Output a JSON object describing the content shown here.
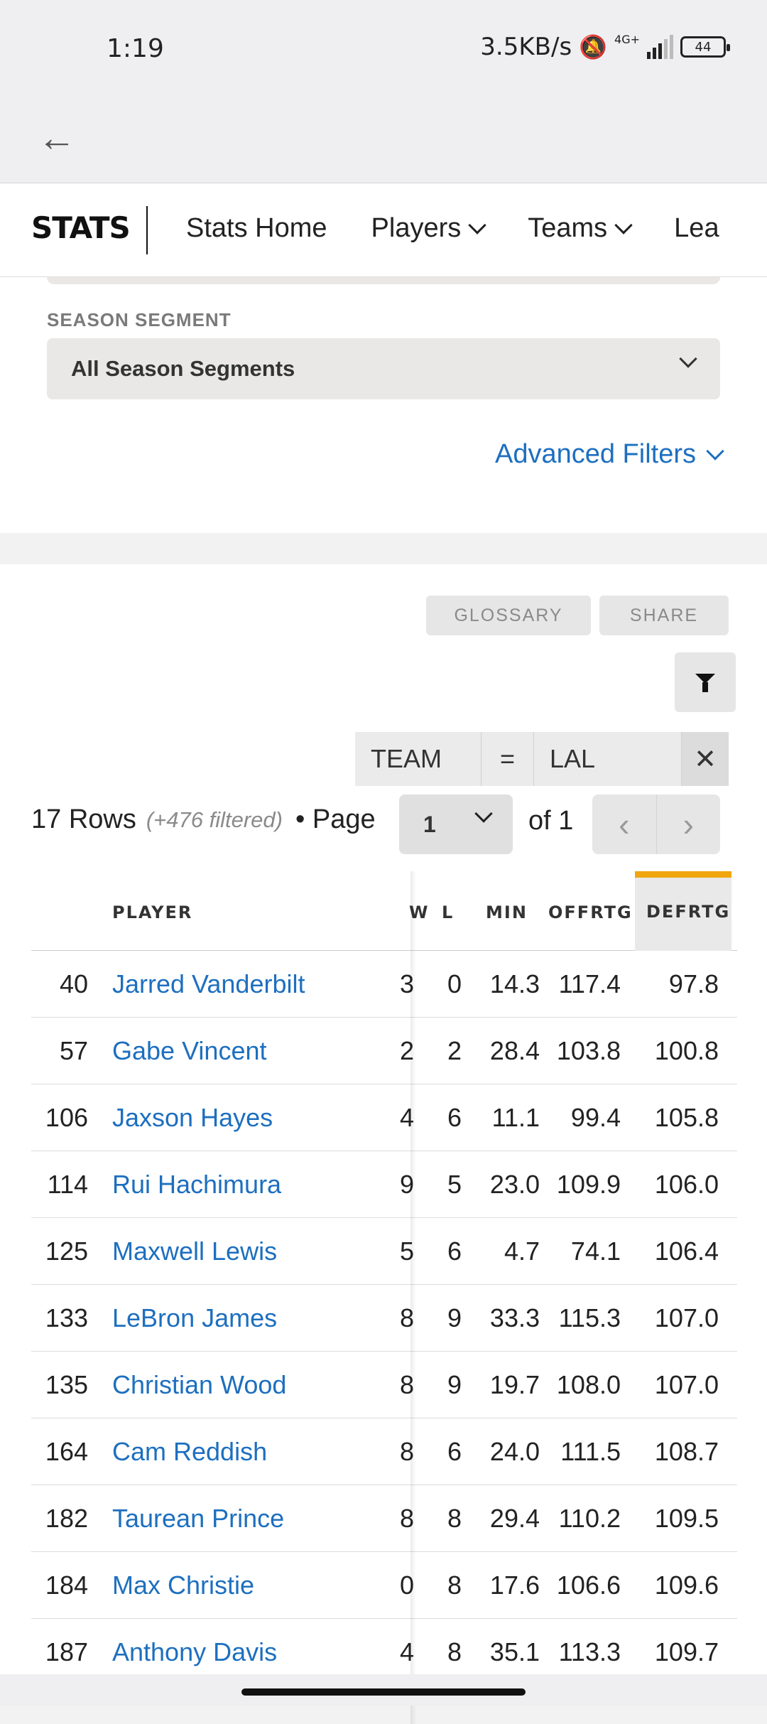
{
  "status_bar": {
    "time": "1:19",
    "network_speed": "3.5KB/s",
    "network_type": "4G+",
    "battery": "44"
  },
  "nav": {
    "brand": "STATS",
    "items": [
      {
        "label": "Stats Home"
      },
      {
        "label": "Players"
      },
      {
        "label": "Teams"
      },
      {
        "label": "Lea"
      }
    ]
  },
  "filters": {
    "season_segment_label": "SEASON SEGMENT",
    "season_segment_value": "All Season Segments",
    "advanced_filters": "Advanced Filters"
  },
  "toolbar": {
    "glossary": "GLOSSARY",
    "share": "SHARE"
  },
  "team_filter": {
    "field": "TEAM",
    "operator": "=",
    "value": "LAL",
    "close": "✕"
  },
  "rows_info": {
    "rows": "17 Rows",
    "filtered": "(+476 filtered)",
    "page_label": "• Page",
    "page": "1",
    "of": "of 1"
  },
  "table": {
    "columns": [
      "PLAYER",
      "W",
      "L",
      "MIN",
      "OFFRTG",
      "DEFRTG"
    ],
    "rows": [
      {
        "rank": "40",
        "player": "Jarred Vanderbilt",
        "w": "3",
        "l": "0",
        "min": "14.3",
        "offrtg": "117.4",
        "defrtg": "97.8"
      },
      {
        "rank": "57",
        "player": "Gabe Vincent",
        "w": "2",
        "l": "2",
        "min": "28.4",
        "offrtg": "103.8",
        "defrtg": "100.8"
      },
      {
        "rank": "106",
        "player": "Jaxson Hayes",
        "w": "4",
        "l": "6",
        "min": "11.1",
        "offrtg": "99.4",
        "defrtg": "105.8"
      },
      {
        "rank": "114",
        "player": "Rui Hachimura",
        "w": "9",
        "l": "5",
        "min": "23.0",
        "offrtg": "109.9",
        "defrtg": "106.0"
      },
      {
        "rank": "125",
        "player": "Maxwell Lewis",
        "w": "5",
        "l": "6",
        "min": "4.7",
        "offrtg": "74.1",
        "defrtg": "106.4"
      },
      {
        "rank": "133",
        "player": "LeBron James",
        "w": "8",
        "l": "9",
        "min": "33.3",
        "offrtg": "115.3",
        "defrtg": "107.0"
      },
      {
        "rank": "135",
        "player": "Christian Wood",
        "w": "8",
        "l": "9",
        "min": "19.7",
        "offrtg": "108.0",
        "defrtg": "107.0"
      },
      {
        "rank": "164",
        "player": "Cam Reddish",
        "w": "8",
        "l": "6",
        "min": "24.0",
        "offrtg": "111.5",
        "defrtg": "108.7"
      },
      {
        "rank": "182",
        "player": "Taurean Prince",
        "w": "8",
        "l": "8",
        "min": "29.4",
        "offrtg": "110.2",
        "defrtg": "109.5"
      },
      {
        "rank": "184",
        "player": "Max Christie",
        "w": "0",
        "l": "8",
        "min": "17.6",
        "offrtg": "106.6",
        "defrtg": "109.6"
      },
      {
        "rank": "187",
        "player": "Anthony Davis",
        "w": "4",
        "l": "8",
        "min": "35.1",
        "offrtg": "113.3",
        "defrtg": "109.7"
      }
    ]
  },
  "colors": {
    "link_blue": "#1d6fbf",
    "sort_accent": "#f1a60f"
  }
}
